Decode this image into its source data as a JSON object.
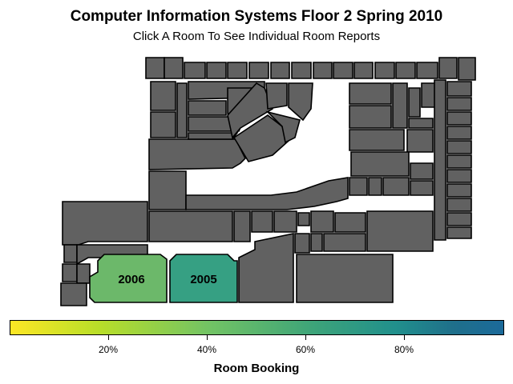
{
  "header": {
    "title": "Computer Information Systems Floor 2 Spring 2010",
    "subtitle": "Click A Room To See Individual Room Reports"
  },
  "map": {
    "base_room_color": "#616161",
    "outline_color": "#000000",
    "rooms": [
      {
        "id": "2006",
        "label": "2006",
        "booking": 0.5,
        "color": "#6cb86a"
      },
      {
        "id": "2005",
        "label": "2005",
        "booking": 0.75,
        "color": "#36a083"
      }
    ]
  },
  "legend": {
    "title": "Room Booking",
    "ticks": [
      "20%",
      "40%",
      "60%",
      "80%"
    ],
    "colors": [
      "#fde725",
      "#73c464",
      "#21908c",
      "#1b6a9a"
    ]
  }
}
